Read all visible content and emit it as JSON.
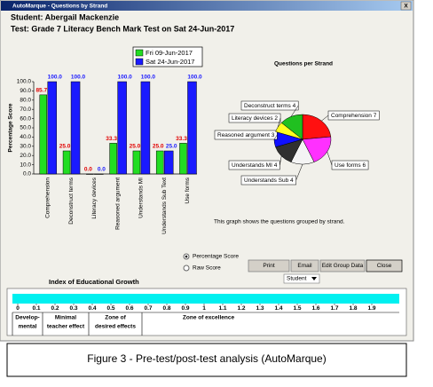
{
  "window": {
    "title": "AutoMarque - Questions by Strand",
    "close": "X"
  },
  "student": "Student: Abergail Mackenzie",
  "test": "Test: Grade 7 Literacy Bench Mark Test  on Sat 24-Jun-2017",
  "chart_data": [
    {
      "type": "bar",
      "y_label": "Percentage Score",
      "categories": [
        "Comprehension",
        "Deconstruct terms",
        "Literacy devices",
        "Reasoned argument",
        "Understands MI",
        "Understands Sub Text",
        "Use forms"
      ],
      "series": [
        {
          "name": "Fri 09-Jun-2017",
          "color": "#22dd22",
          "values": [
            85.7,
            25,
            0,
            33.3,
            25,
            25,
            33.3
          ],
          "value_labels": [
            "85.7",
            "25.0",
            "0.0",
            "33.3",
            "25.0",
            "25.0",
            "33.3"
          ]
        },
        {
          "name": "Sat 24-Jun-2017",
          "color": "#1a1aff",
          "values": [
            100,
            100,
            0,
            100,
            100,
            25,
            100
          ],
          "value_labels": [
            "100.0",
            "100.0",
            "0.0",
            "100.0",
            "100.0",
            "25.0",
            "100.0"
          ]
        }
      ],
      "ylim": [
        0,
        100
      ],
      "yticks": [
        {
          "value": 0,
          "label": "0.0"
        },
        {
          "value": 10,
          "label": "10.0"
        },
        {
          "value": 20,
          "label": "20.0"
        },
        {
          "value": 30,
          "label": "30.0"
        },
        {
          "value": 40,
          "label": "40.0"
        },
        {
          "value": 50,
          "label": "50.0"
        },
        {
          "value": 60,
          "label": "60.0"
        },
        {
          "value": 70,
          "label": "70.0"
        },
        {
          "value": 80,
          "label": "80.0"
        },
        {
          "value": 90,
          "label": "90.0"
        },
        {
          "value": 100,
          "label": "100.0"
        }
      ]
    },
    {
      "type": "pie",
      "title": "Questions per Strand",
      "categories": [
        "Comprehension",
        "Use forms",
        "Understands Sub",
        "Understands MI",
        "Reasoned argument",
        "Literacy devices",
        "Deconstruct terms"
      ],
      "values": [
        7,
        6,
        4,
        4,
        3,
        2,
        4
      ],
      "colors": [
        "#ff1010",
        "#ff30ff",
        "#f4f4f4",
        "#303030",
        "#1010ff",
        "#ffff20",
        "#20c020"
      ],
      "note": "This graph shows the questions grouped by strand."
    }
  ],
  "controls": {
    "radio": [
      "Percentage Score",
      "Raw Score"
    ],
    "buttons": [
      "Print",
      "Email",
      "Edit Group Data",
      "Close"
    ],
    "select": "Student"
  },
  "growth": {
    "title": "Index of Educational Growth",
    "ticks": [
      0,
      0.1,
      0.2,
      0.3,
      0.4,
      0.5,
      0.6,
      0.7,
      0.8,
      0.9,
      1,
      1.1,
      1.2,
      1.3,
      1.4,
      1.5,
      1.6,
      1.7,
      1.8,
      1.9
    ],
    "zones": [
      [
        "Develop-",
        "mental"
      ],
      [
        "Minimal",
        "teacher effect"
      ],
      [
        "Zone of",
        "desired effects"
      ],
      [
        "Zone of excellence"
      ]
    ]
  },
  "caption": "Figure 3 - Pre-test/post-test analysis (AutoMarque)"
}
